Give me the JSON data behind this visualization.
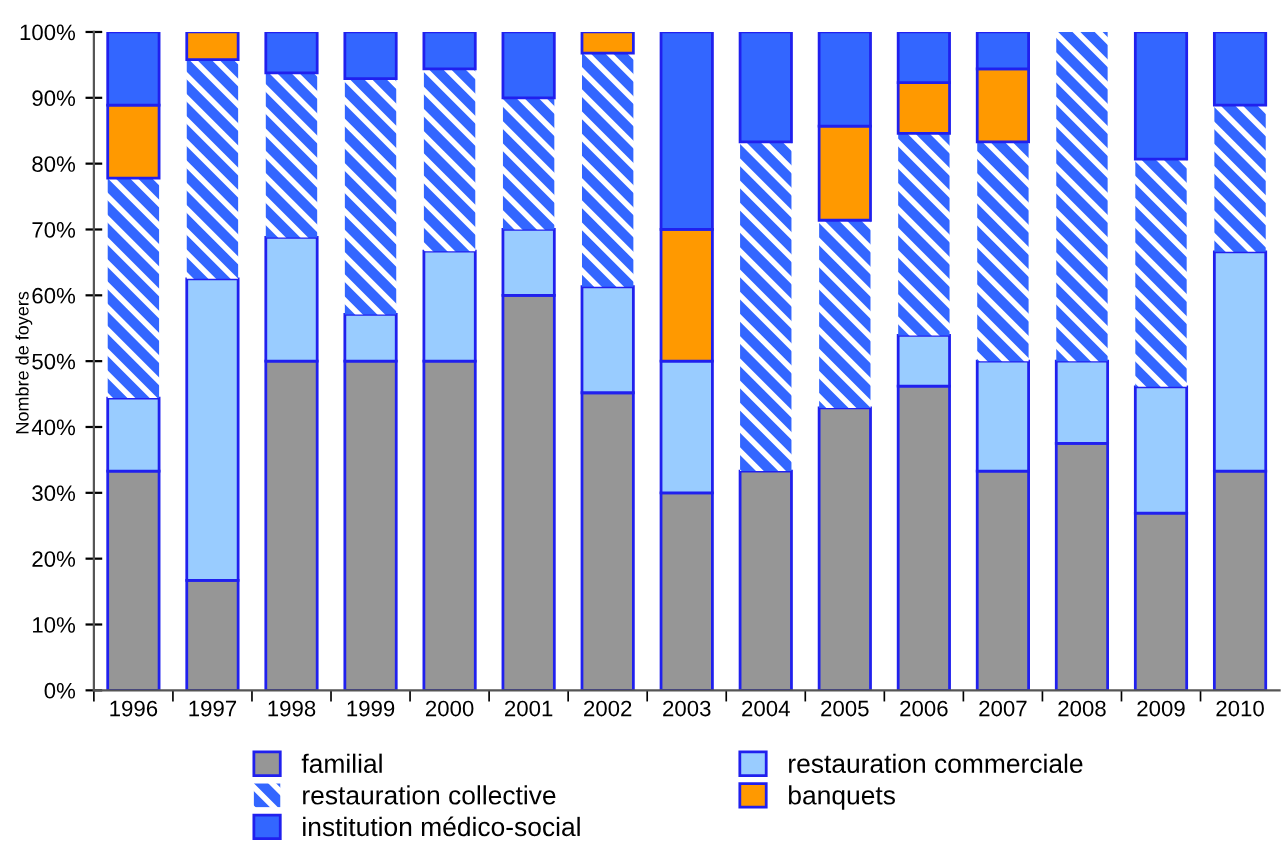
{
  "chart_data": {
    "type": "bar",
    "stacked": true,
    "ylabel": "Nombre de foyers",
    "categories": [
      "1996",
      "1997",
      "1998",
      "1999",
      "2000",
      "2001",
      "2002",
      "2003",
      "2004",
      "2005",
      "2006",
      "2007",
      "2008",
      "2009",
      "2010"
    ],
    "series": [
      {
        "name": "familial",
        "color": "#969696",
        "values": [
          33.3,
          16.7,
          50,
          50,
          50,
          60,
          45.2,
          30,
          33.3,
          42.9,
          46.2,
          33.3,
          37.5,
          26.9,
          33.3
        ]
      },
      {
        "name": "restauration commerciale",
        "color": "#99ccff",
        "values": [
          11.1,
          45.8,
          18.8,
          7.1,
          16.7,
          10,
          16.1,
          20,
          null,
          null,
          7.7,
          16.7,
          12.5,
          19.2,
          33.3
        ]
      },
      {
        "name": "restauration collective",
        "color": "#3366ff",
        "values": [
          33.4,
          33.3,
          25,
          35.8,
          27.7,
          20,
          35.5,
          null,
          50,
          28.5,
          30.7,
          33.3,
          50,
          34.6,
          22.3
        ]
      },
      {
        "name": "banquets",
        "color": "#ff9900",
        "values": [
          11.1,
          4.2,
          null,
          null,
          null,
          null,
          3.2,
          20,
          null,
          14.3,
          7.7,
          11.1,
          null,
          null,
          null
        ]
      },
      {
        "name": "institution médico-social",
        "color": "#3366ff",
        "values": [
          11.1,
          null,
          6.2,
          7.1,
          5.6,
          10,
          null,
          30,
          16.7,
          14.3,
          7.7,
          5.6,
          null,
          19.3,
          11.1
        ]
      }
    ],
    "ylim": [
      0,
      100
    ],
    "yticks": [
      {
        "value": 0,
        "label": "0%"
      },
      {
        "value": 10,
        "label": "10%"
      },
      {
        "value": 20,
        "label": "20%"
      },
      {
        "value": 30,
        "label": "30%"
      },
      {
        "value": 40,
        "label": "40%"
      },
      {
        "value": 50,
        "label": "50%"
      },
      {
        "value": 60,
        "label": "60%"
      },
      {
        "value": 70,
        "label": "70%"
      },
      {
        "value": 80,
        "label": "80%"
      },
      {
        "value": 90,
        "label": "90%"
      },
      {
        "value": 100,
        "label": "100%"
      }
    ],
    "grid": false,
    "legend": "bottom"
  }
}
